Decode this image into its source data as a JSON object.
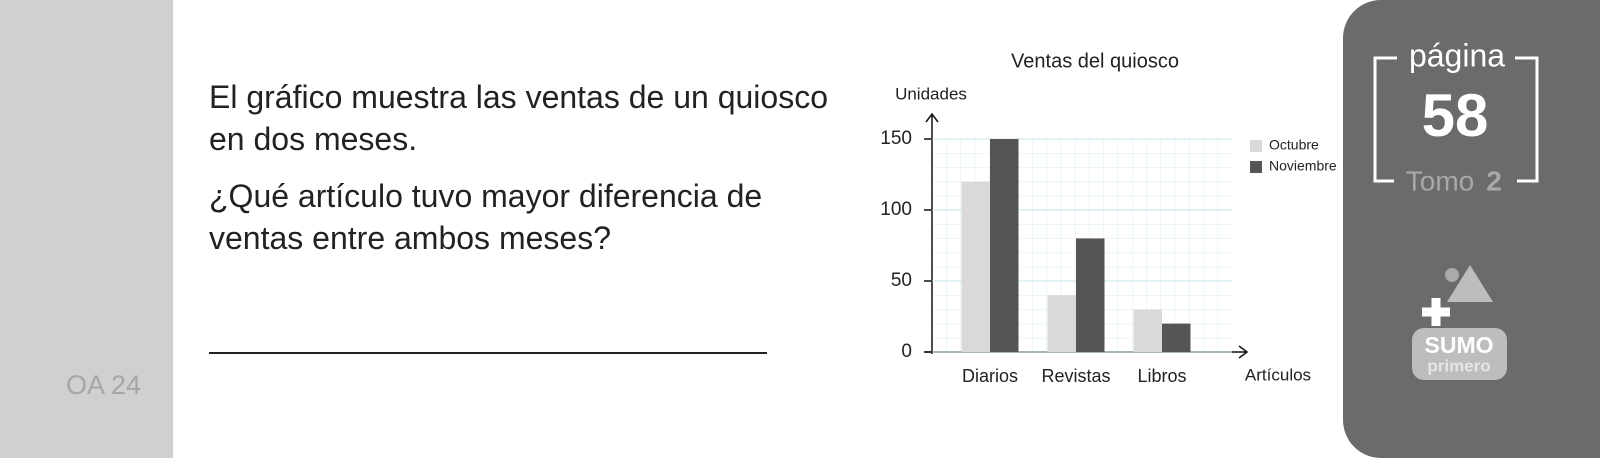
{
  "sidebar": {
    "code": "OA 24"
  },
  "question": {
    "statement": "El gráfico muestra las ventas de un quiosco en dos meses.",
    "prompt": "¿Qué artículo tuvo mayor diferencia de ventas entre ambos meses?"
  },
  "chart_data": {
    "type": "bar",
    "title": "Ventas del quiosco",
    "y_label": "Unidades",
    "x_label": "Artículos",
    "categories": [
      "Diarios",
      "Revistas",
      "Libros"
    ],
    "series": [
      {
        "name": "Octubre",
        "color": "#d9d9d9",
        "values": [
          120,
          40,
          30
        ]
      },
      {
        "name": "Noviembre",
        "color": "#555555",
        "values": [
          150,
          80,
          20
        ]
      }
    ],
    "ylim": [
      0,
      150
    ],
    "yticks": [
      0,
      50,
      100,
      150
    ],
    "grid": true,
    "legend": "right"
  },
  "page_badge": {
    "label": "página",
    "number": "58",
    "volume_label": "Tomo",
    "volume_number": "2"
  },
  "logo": {
    "name": "SUMO",
    "subtitle": "primero"
  }
}
